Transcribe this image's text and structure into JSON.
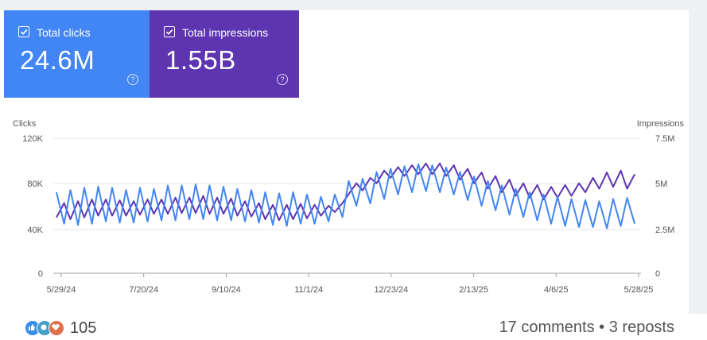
{
  "cards": [
    {
      "label": "Total clicks",
      "value": "24.6M",
      "help": "?"
    },
    {
      "label": "Total impressions",
      "value": "1.55B",
      "help": "?"
    }
  ],
  "colors": {
    "clicks": "#4285f4",
    "impressions": "#5e35b1",
    "grid": "#e5e5e5"
  },
  "icons": [
    "checkbox-checked-icon",
    "help-circle-icon",
    "like-reaction-icon",
    "celebrate-reaction-icon",
    "love-reaction-icon"
  ],
  "chart_data": {
    "type": "line",
    "xlabel": "",
    "x_ticks": [
      "5/29/24",
      "7/20/24",
      "9/10/24",
      "11/1/24",
      "12/23/24",
      "2/13/25",
      "4/6/25",
      "5/28/25"
    ],
    "x_range": [
      "2024-05-29",
      "2025-05-28"
    ],
    "left_axis": {
      "title": "Clicks",
      "ticks": [
        "120K",
        "80K",
        "40K",
        "0"
      ],
      "ylim": [
        0,
        120000
      ]
    },
    "right_axis": {
      "title": "Impressions",
      "ticks": [
        "7.5M",
        "5M",
        "2.5M",
        "0"
      ],
      "ylim": [
        0,
        7500000
      ]
    },
    "series": [
      {
        "name": "Clicks",
        "axis": "left",
        "note": "weekly oscillation; values are approx weekly peak/trough",
        "peaks": [
          72000,
          74000,
          76000,
          77000,
          76000,
          74000,
          76000,
          75000,
          78000,
          78000,
          79000,
          78000,
          77000,
          75000,
          74000,
          72000,
          71000,
          72000,
          70000,
          68000,
          70000,
          82000,
          84000,
          90000,
          93000,
          95000,
          97000,
          96000,
          94000,
          90000,
          86000,
          82000,
          78000,
          75000,
          72000,
          70000,
          68000,
          66000,
          65000,
          64000,
          66000,
          67000
        ],
        "troughs": [
          44000,
          43000,
          44000,
          46000,
          45000,
          45000,
          46000,
          47000,
          47000,
          48000,
          48000,
          47000,
          47000,
          46000,
          45000,
          43000,
          42000,
          44000,
          44000,
          46000,
          50000,
          60000,
          62000,
          66000,
          70000,
          72000,
          73000,
          72000,
          70000,
          65000,
          60000,
          56000,
          52000,
          50000,
          47000,
          44000,
          42000,
          41000,
          41000,
          40000,
          42000,
          44000
        ]
      },
      {
        "name": "Impressions",
        "axis": "right",
        "peaks": [
          3900000,
          4000000,
          4100000,
          4100000,
          4050000,
          4000000,
          4100000,
          4100000,
          4200000,
          4200000,
          4300000,
          4200000,
          4150000,
          4000000,
          3900000,
          3800000,
          3800000,
          3850000,
          3800000,
          3750000,
          3900000,
          5000000,
          5300000,
          5700000,
          5900000,
          6000000,
          6100000,
          6100000,
          6000000,
          5800000,
          5600000,
          5400000,
          5200000,
          5000000,
          4900000,
          4800000,
          4900000,
          5000000,
          5300000,
          5600000,
          5700000,
          5500000
        ],
        "troughs": [
          3100000,
          3000000,
          3100000,
          3200000,
          3200000,
          3200000,
          3250000,
          3300000,
          3300000,
          3350000,
          3350000,
          3300000,
          3300000,
          3200000,
          3150000,
          3000000,
          2950000,
          3000000,
          3050000,
          3200000,
          3400000,
          4400000,
          4600000,
          5000000,
          5300000,
          5400000,
          5500000,
          5500000,
          5400000,
          5200000,
          5000000,
          4700000,
          4500000,
          4300000,
          4200000,
          4100000,
          4200000,
          4300000,
          4500000,
          4700000,
          4800000,
          4700000
        ]
      }
    ],
    "grid": true,
    "legend": "top-left cards"
  },
  "social": {
    "count": "105",
    "comments": "17 comments • 3 reposts"
  }
}
